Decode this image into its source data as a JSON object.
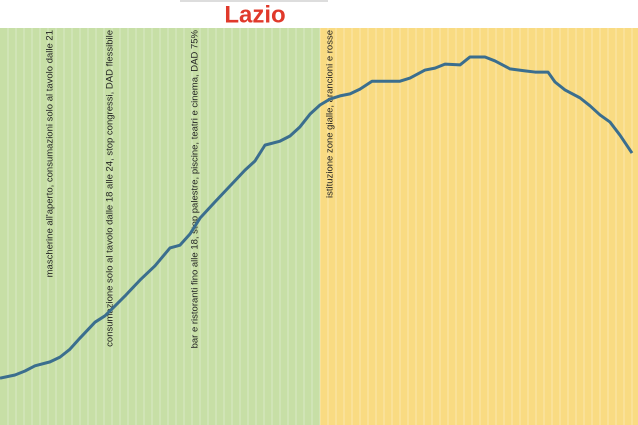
{
  "chart_data": {
    "type": "line",
    "title": "Lazio",
    "title_color": "#e0392b",
    "xlim": [
      0,
      638
    ],
    "ylim": [
      0,
      100
    ],
    "regions": [
      {
        "start": 0,
        "end": 320,
        "color": "#c7dfa6"
      },
      {
        "start": 320,
        "end": 638,
        "color": "#f9db82"
      }
    ],
    "series": [
      {
        "color": "#3b6e8e",
        "x": [
          0,
          15,
          25,
          35,
          50,
          60,
          70,
          80,
          95,
          105,
          115,
          125,
          140,
          155,
          170,
          180,
          190,
          200,
          215,
          230,
          245,
          255,
          265,
          280,
          290,
          300,
          310,
          320,
          330,
          340,
          350,
          360,
          372,
          385,
          400,
          410,
          425,
          435,
          445,
          460,
          470,
          485,
          495,
          510,
          525,
          535,
          548,
          555,
          565,
          580,
          590,
          600,
          610,
          620,
          632
        ],
        "values": [
          11.8,
          12.6,
          13.6,
          14.9,
          15.9,
          17.1,
          19.1,
          21.9,
          25.9,
          27.5,
          30.0,
          32.5,
          36.5,
          40.1,
          44.6,
          45.3,
          48.1,
          52.1,
          56.2,
          60.2,
          64.2,
          66.5,
          70.5,
          71.5,
          72.8,
          75.1,
          78.3,
          80.6,
          82.1,
          82.9,
          83.4,
          84.6,
          86.6,
          86.6,
          86.6,
          87.4,
          89.4,
          89.9,
          90.9,
          90.7,
          92.7,
          92.7,
          91.7,
          89.7,
          89.2,
          88.9,
          88.9,
          86.4,
          84.4,
          82.4,
          80.4,
          78.1,
          76.3,
          73.0,
          68.5
        ]
      }
    ],
    "annotations": [
      {
        "x": 50,
        "text": "mascherine all'aperto, consumazioni solo al tavolo dalle 21"
      },
      {
        "x": 110,
        "text": "consumazione solo al tavolo dalle 18 alle 24, stop congressi, DAD flessibile"
      },
      {
        "x": 195,
        "text": "bar e ristoranti fino alle 18, stop palestre, piscine, teatri e cinema, DAD 75%"
      },
      {
        "x": 330,
        "text": "istituzione zone gialle, arancioni e rosse"
      }
    ]
  }
}
